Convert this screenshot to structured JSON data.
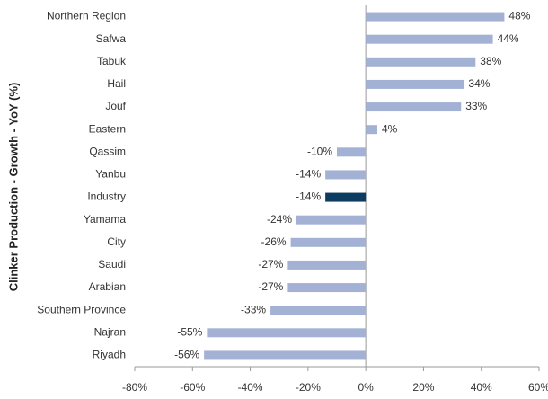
{
  "chart_data": {
    "type": "hbar",
    "y_axis_label": "Clinker Production - Growth - YoY (%)",
    "categories": [
      "Northern Region",
      "Safwa",
      "Tabuk",
      "Hail",
      "Jouf",
      "Eastern",
      "Qassim",
      "Yanbu",
      "Industry",
      "Yamama",
      "City",
      "Saudi",
      "Arabian",
      "Southern Province",
      "Najran",
      "Riyadh"
    ],
    "values": [
      48,
      44,
      38,
      34,
      33,
      4,
      -10,
      -14,
      -14,
      -24,
      -26,
      -27,
      -27,
      -33,
      -55,
      -56
    ],
    "value_labels": [
      "48%",
      "44%",
      "38%",
      "34%",
      "33%",
      "4%",
      "-10%",
      "-14%",
      "-14%",
      "-24%",
      "-26%",
      "-27%",
      "-27%",
      "-33%",
      "-55%",
      "-56%"
    ],
    "colors": [
      "#a3b1d5",
      "#a3b1d5",
      "#a3b1d5",
      "#a3b1d5",
      "#a3b1d5",
      "#a3b1d5",
      "#a3b1d5",
      "#a3b1d5",
      "#0d3c61",
      "#a3b1d5",
      "#a3b1d5",
      "#a3b1d5",
      "#a3b1d5",
      "#a3b1d5",
      "#a3b1d5",
      "#a3b1d5"
    ],
    "xlim": [
      -80,
      60
    ],
    "xticks": [
      {
        "value": -80,
        "label": "-80%"
      },
      {
        "value": -60,
        "label": "-60%"
      },
      {
        "value": -40,
        "label": "-40%"
      },
      {
        "value": -20,
        "label": "-20%"
      },
      {
        "value": 0,
        "label": "0%"
      },
      {
        "value": 20,
        "label": "20%"
      },
      {
        "value": 40,
        "label": "40%"
      },
      {
        "value": 60,
        "label": "60%"
      }
    ],
    "grid": false
  }
}
